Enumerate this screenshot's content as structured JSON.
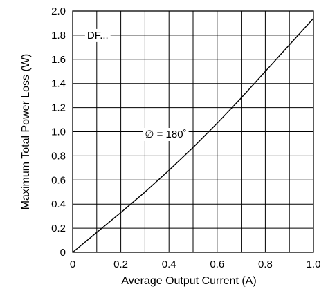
{
  "chart_data": {
    "type": "line",
    "xlabel": "Average Output Current (A)",
    "ylabel": "Maximum Total Power Loss (W)",
    "xlim": [
      0,
      1.0
    ],
    "ylim": [
      0,
      2.0
    ],
    "x_ticks": [
      "0",
      "0.2",
      "0.4",
      "0.6",
      "0.8",
      "1.0"
    ],
    "y_ticks": [
      "0",
      "0.2",
      "0.4",
      "0.6",
      "0.8",
      "1.0",
      "1.2",
      "1.4",
      "1.6",
      "1.8",
      "2.0"
    ],
    "grid": true,
    "series": [
      {
        "x": [
          0,
          0.1,
          0.2,
          0.3,
          0.4,
          0.5,
          0.6,
          0.7,
          0.8,
          0.9,
          1.0
        ],
        "y": [
          0,
          0.165,
          0.33,
          0.5,
          0.68,
          0.87,
          1.07,
          1.28,
          1.5,
          1.72,
          1.94
        ]
      }
    ],
    "annotations": [
      {
        "text": "DF...",
        "x": 0.06,
        "y": 1.8
      },
      {
        "text": "∅ = 180˚",
        "x": 0.3,
        "y": 0.98
      }
    ]
  }
}
